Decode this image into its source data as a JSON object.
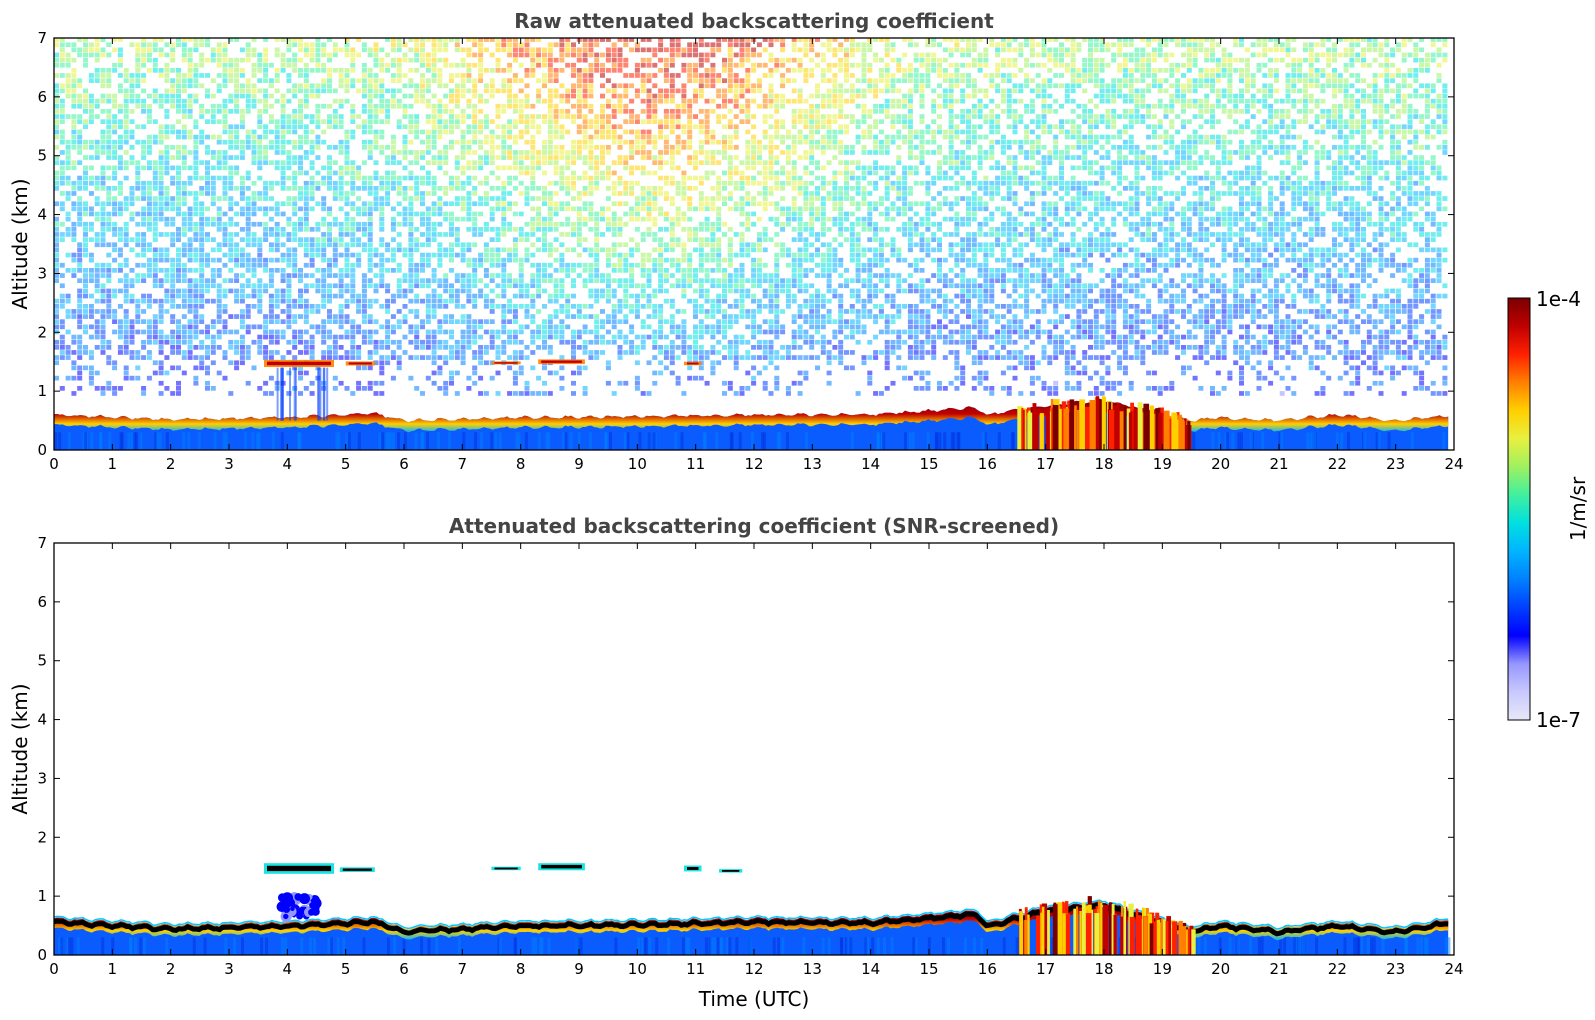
{
  "colors": {
    "colormap": [
      "#e8e8f8",
      "#c8c8ff",
      "#9696ff",
      "#0000ff",
      "#0040ff",
      "#0080ff",
      "#00b4ff",
      "#00e0e0",
      "#40f0a0",
      "#a0f060",
      "#e8f040",
      "#ffd000",
      "#ff8000",
      "#ff2000",
      "#c00000",
      "#7a0000"
    ],
    "noise_high": "#e07020",
    "noise_low": "#2060ff",
    "cloud_core": "#000000"
  },
  "colorbar": {
    "label": "1/m/sr",
    "max_label": "1e-4",
    "min_label": "1e-7",
    "scale": "log",
    "range": [
      1e-07,
      0.0001
    ]
  },
  "chart_data": [
    {
      "type": "heatmap",
      "title": "Raw attenuated backscattering coefficient",
      "xlabel": "",
      "ylabel": "Altitude (km)",
      "xlim": [
        0,
        24
      ],
      "ylim": [
        0,
        7
      ],
      "xticks": [
        "0",
        "1",
        "2",
        "3",
        "4",
        "5",
        "6",
        "7",
        "8",
        "9",
        "10",
        "11",
        "12",
        "13",
        "14",
        "15",
        "16",
        "17",
        "18",
        "19",
        "20",
        "21",
        "22",
        "23",
        "24"
      ],
      "yticks": [
        "0",
        "1",
        "2",
        "3",
        "4",
        "5",
        "6",
        "7"
      ],
      "grid": false,
      "screened": false,
      "boundary_layer_top_km": [
        [
          0,
          0.6
        ],
        [
          2,
          0.52
        ],
        [
          4,
          0.55
        ],
        [
          5.5,
          0.62
        ],
        [
          6,
          0.5
        ],
        [
          8,
          0.55
        ],
        [
          10,
          0.57
        ],
        [
          12,
          0.6
        ],
        [
          14,
          0.6
        ],
        [
          15.8,
          0.72
        ],
        [
          16,
          0.6
        ],
        [
          17,
          0.75
        ],
        [
          18,
          0.85
        ],
        [
          19.5,
          0.5
        ],
        [
          20,
          0.55
        ],
        [
          21,
          0.5
        ],
        [
          22,
          0.6
        ],
        [
          23,
          0.5
        ],
        [
          23.9,
          0.58
        ]
      ],
      "cloud_layers": [
        {
          "start_h": 3.6,
          "end_h": 4.8,
          "altitude_km": 1.47,
          "thickness_km": 0.12
        },
        {
          "start_h": 5.0,
          "end_h": 5.5,
          "altitude_km": 1.47,
          "thickness_km": 0.07
        },
        {
          "start_h": 7.5,
          "end_h": 8.0,
          "altitude_km": 1.48,
          "thickness_km": 0.05
        },
        {
          "start_h": 8.3,
          "end_h": 9.1,
          "altitude_km": 1.5,
          "thickness_km": 0.08
        },
        {
          "start_h": 10.8,
          "end_h": 11.1,
          "altitude_km": 1.47,
          "thickness_km": 0.06
        }
      ],
      "convective_period": {
        "start_h": 16.5,
        "end_h": 19.5,
        "max_altitude_km": 0.9
      }
    },
    {
      "type": "heatmap",
      "title": "Attenuated backscattering coefficient (SNR-screened)",
      "xlabel": "Time (UTC)",
      "ylabel": "Altitude (km)",
      "xlim": [
        0,
        24
      ],
      "ylim": [
        0,
        7
      ],
      "xticks": [
        "0",
        "1",
        "2",
        "3",
        "4",
        "5",
        "6",
        "7",
        "8",
        "9",
        "10",
        "11",
        "12",
        "13",
        "14",
        "15",
        "16",
        "17",
        "18",
        "19",
        "20",
        "21",
        "22",
        "23",
        "24"
      ],
      "yticks": [
        "0",
        "1",
        "2",
        "3",
        "4",
        "5",
        "6",
        "7"
      ],
      "grid": false,
      "screened": true,
      "boundary_layer_top_km": [
        [
          0,
          0.62
        ],
        [
          2,
          0.5
        ],
        [
          4,
          0.55
        ],
        [
          5.5,
          0.62
        ],
        [
          6,
          0.45
        ],
        [
          8,
          0.55
        ],
        [
          10,
          0.57
        ],
        [
          12,
          0.62
        ],
        [
          14,
          0.6
        ],
        [
          15.8,
          0.75
        ],
        [
          16,
          0.55
        ],
        [
          17,
          0.8
        ],
        [
          18,
          0.9
        ],
        [
          19.5,
          0.45
        ],
        [
          20,
          0.55
        ],
        [
          21,
          0.45
        ],
        [
          22,
          0.55
        ],
        [
          23,
          0.45
        ],
        [
          23.9,
          0.6
        ]
      ],
      "cloud_layers": [
        {
          "start_h": 3.6,
          "end_h": 4.8,
          "altitude_km": 1.47,
          "thickness_km": 0.18
        },
        {
          "start_h": 4.9,
          "end_h": 5.5,
          "altitude_km": 1.45,
          "thickness_km": 0.08
        },
        {
          "start_h": 7.5,
          "end_h": 8.0,
          "altitude_km": 1.47,
          "thickness_km": 0.06
        },
        {
          "start_h": 8.3,
          "end_h": 9.1,
          "altitude_km": 1.5,
          "thickness_km": 0.12
        },
        {
          "start_h": 10.8,
          "end_h": 11.1,
          "altitude_km": 1.47,
          "thickness_km": 0.1
        },
        {
          "start_h": 11.4,
          "end_h": 11.8,
          "altitude_km": 1.43,
          "thickness_km": 0.06
        }
      ],
      "convective_period": {
        "start_h": 16.5,
        "end_h": 19.5,
        "max_altitude_km": 0.95
      },
      "aerosol_plume": {
        "start_h": 3.6,
        "end_h": 4.8,
        "altitude_km": [
          0.6,
          1.0
        ]
      }
    }
  ]
}
